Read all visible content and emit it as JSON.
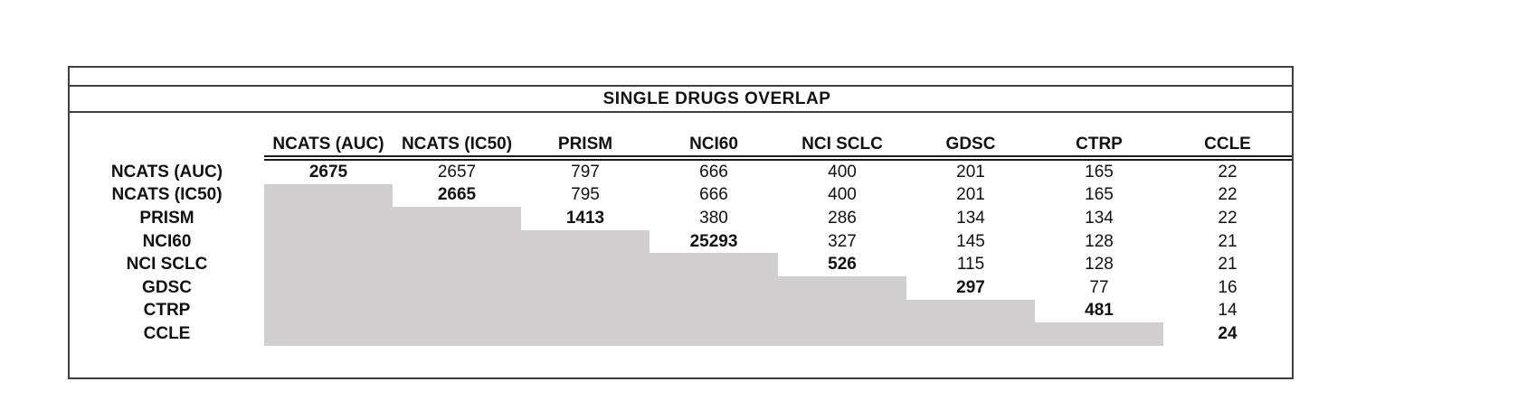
{
  "title": "SINGLE DRUGS OVERLAP",
  "colors": {
    "shaded_cell": "#d0cece",
    "frame_border": "#404040",
    "text": "#111111"
  },
  "chart_data": {
    "type": "table",
    "title": "SINGLE DRUGS OVERLAP",
    "layout_hints": {
      "diagonal_values_bold": true,
      "lower_triangle_shaded": true,
      "header_underline": "double"
    },
    "columns": [
      "NCATS (AUC)",
      "NCATS (IC50)",
      "PRISM",
      "NCI60",
      "NCI SCLC",
      "GDSC",
      "CTRP",
      "CCLE"
    ],
    "rows": [
      {
        "label": "NCATS (AUC)",
        "values": [
          2675,
          2657,
          797,
          666,
          400,
          201,
          165,
          22
        ],
        "diagonal_index": 0
      },
      {
        "label": "NCATS (IC50)",
        "values": [
          null,
          2665,
          795,
          666,
          400,
          201,
          165,
          22
        ],
        "diagonal_index": 1
      },
      {
        "label": "PRISM",
        "values": [
          null,
          null,
          1413,
          380,
          286,
          134,
          134,
          22
        ],
        "diagonal_index": 2
      },
      {
        "label": "NCI60",
        "values": [
          null,
          null,
          null,
          25293,
          327,
          145,
          128,
          21
        ],
        "diagonal_index": 3
      },
      {
        "label": "NCI SCLC",
        "values": [
          null,
          null,
          null,
          null,
          526,
          115,
          128,
          21
        ],
        "diagonal_index": 4
      },
      {
        "label": "GDSC",
        "values": [
          null,
          null,
          null,
          null,
          null,
          297,
          77,
          16
        ],
        "diagonal_index": 5
      },
      {
        "label": "CTRP",
        "values": [
          null,
          null,
          null,
          null,
          null,
          null,
          481,
          14
        ],
        "diagonal_index": 6
      },
      {
        "label": "CCLE",
        "values": [
          null,
          null,
          null,
          null,
          null,
          null,
          null,
          24
        ],
        "diagonal_index": 7
      }
    ]
  }
}
